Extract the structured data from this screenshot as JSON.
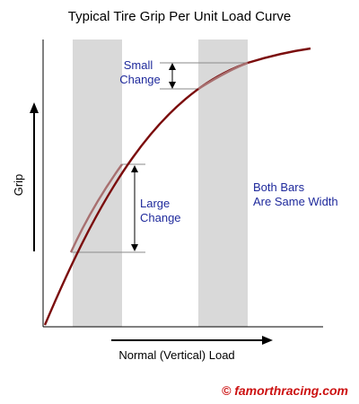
{
  "title": "Typical Tire Grip Per Unit Load Curve",
  "y_axis_label": "Grip",
  "x_axis_label": "Normal (Vertical) Load",
  "annotations": {
    "small_change": [
      "Small",
      "Change"
    ],
    "large_change": [
      "Large",
      "Change"
    ],
    "note": [
      "Both Bars",
      "Are Same Width"
    ]
  },
  "copyright": "© famorthracing.com",
  "colors": {
    "background": "#ffffff",
    "bars": "#d9d9d9",
    "curve": "#7b0d0d",
    "curve_highlight": "#a87070",
    "annotation_text": "#1f2a9c",
    "copyright": "#cc1111",
    "axis": "#000000",
    "guide_lines": "#8a8a8a"
  }
}
